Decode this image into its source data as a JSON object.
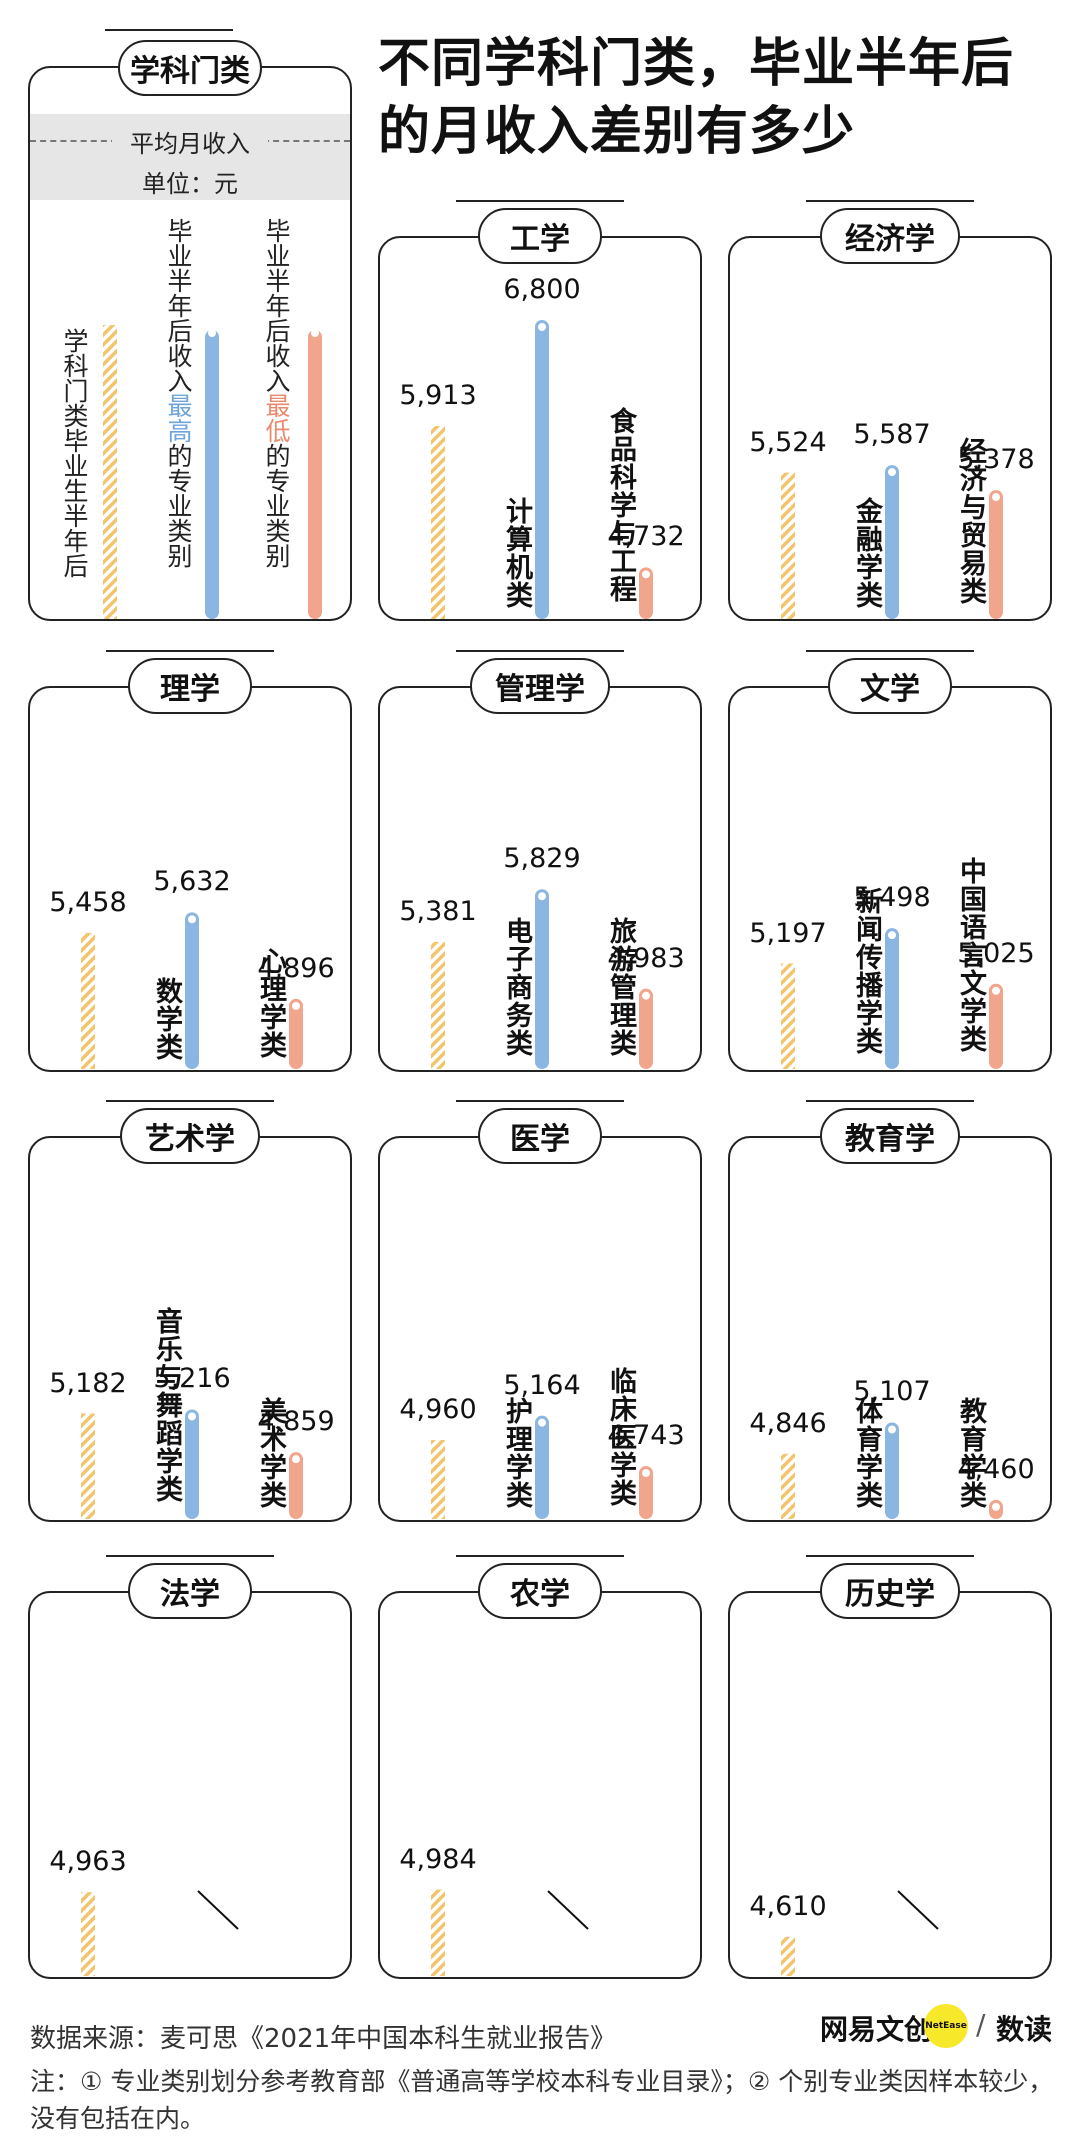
{
  "title_line1": "不同学科门类，毕业半年后",
  "title_line2": "的月收入差别有多少",
  "legend": {
    "tab": "学科门类",
    "avg_label": "平均月收入",
    "unit": "单位：元",
    "col1": "学科门类毕业生半年后",
    "col2_pre": "毕业半年后收入",
    "col2_hl": "最高",
    "col2_post": "的专业类别",
    "col3_pre": "毕业半年后收入",
    "col3_hl": "最低",
    "col3_post": "的专业类别"
  },
  "colors": {
    "avg": "#f2c46b",
    "high": "#8bb6e1",
    "low": "#f0a58c"
  },
  "chart_data": {
    "type": "bar",
    "panels": [
      {
        "name": "工学",
        "avg": 5913,
        "high": 6800,
        "high_label": "计算机类",
        "low": 4732,
        "low_label": "食品科学与工程"
      },
      {
        "name": "经济学",
        "avg": 5524,
        "high": 5587,
        "high_label": "金融学类",
        "low": 5378,
        "low_label": "经济与贸易类"
      },
      {
        "name": "理学",
        "avg": 5458,
        "high": 5632,
        "high_label": "数学类",
        "low": 4896,
        "low_label": "心理学类"
      },
      {
        "name": "管理学",
        "avg": 5381,
        "high": 5829,
        "high_label": "电子商务类",
        "low": 4983,
        "low_label": "旅游管理类"
      },
      {
        "name": "文学",
        "avg": 5197,
        "high": 5498,
        "high_label": "新闻传播学类",
        "low": 5025,
        "low_label": "中国语言文学类"
      },
      {
        "name": "艺术学",
        "avg": 5182,
        "high": 5216,
        "high_label": "音乐与舞蹈学类",
        "low": 4859,
        "low_label": "美术学类"
      },
      {
        "name": "医学",
        "avg": 4960,
        "high": 5164,
        "high_label": "护理学类",
        "low": 4743,
        "low_label": "临床医学类"
      },
      {
        "name": "教育学",
        "avg": 4846,
        "high": 5107,
        "high_label": "体育学类",
        "low": 4460,
        "low_label": "教育学类"
      },
      {
        "name": "法学",
        "avg": 4963,
        "high": null,
        "high_label": "",
        "low": null,
        "low_label": ""
      },
      {
        "name": "农学",
        "avg": 4984,
        "high": null,
        "high_label": "",
        "low": null,
        "low_label": ""
      },
      {
        "name": "历史学",
        "avg": 4610,
        "high": null,
        "high_label": "",
        "low": null,
        "low_label": ""
      }
    ]
  },
  "footer": {
    "source": "数据来源：麦可思《2021年中国本科生就业报告》",
    "note": "注：① 专业类别划分参考教育部《普通高等学校本科专业目录》；② 个别专业类因样本较少，没有包括在内。",
    "logo_left": "网易文创",
    "logo_badge": "NetEase",
    "logo_sep": "/",
    "logo_right": "数读"
  }
}
